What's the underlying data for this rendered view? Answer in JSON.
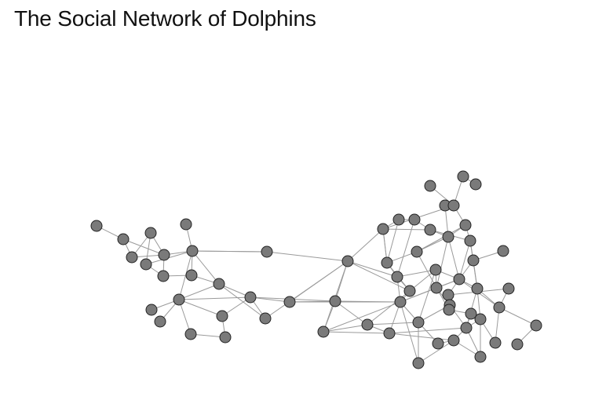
{
  "title": "The Social Network of Dolphins",
  "colors": {
    "node_fill": "#7a7a7a",
    "node_stroke": "#222222",
    "edge": "#9a9a9a"
  },
  "icons": [
    "circle-node"
  ]
}
